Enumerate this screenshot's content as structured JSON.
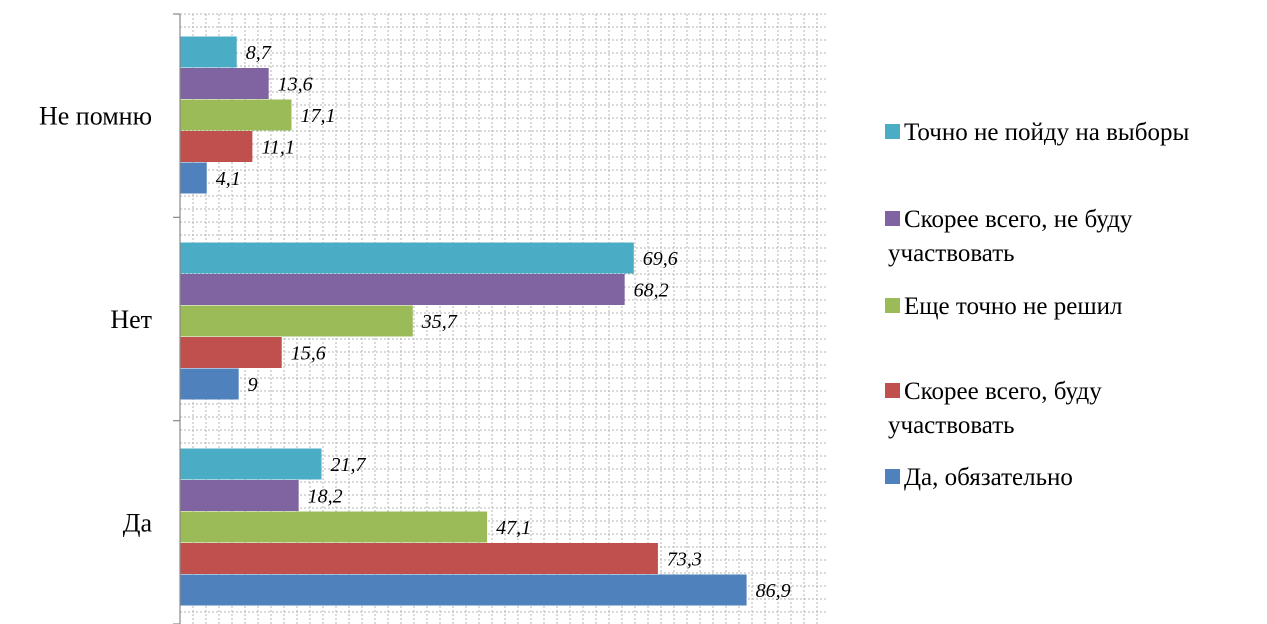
{
  "chart_data": {
    "type": "bar",
    "orientation": "horizontal",
    "categories": [
      "Не помню",
      "Нет",
      "Да"
    ],
    "series": [
      {
        "name": "Точно не пойду на выборы",
        "color": "#4bacc6",
        "values": [
          8.7,
          69.6,
          21.7
        ],
        "labels": [
          "8,7",
          "69,6",
          "21,7"
        ]
      },
      {
        "name": "Скорее всего, не буду участвовать",
        "color": "#8064a2",
        "values": [
          13.6,
          68.2,
          18.2
        ],
        "labels": [
          "13,6",
          "68,2",
          "18,2"
        ]
      },
      {
        "name": "Еще точно не решил",
        "color": "#9bbb59",
        "values": [
          17.1,
          35.7,
          47.1
        ],
        "labels": [
          "17,1",
          "35,7",
          "47,1"
        ]
      },
      {
        "name": "Скорее всего, буду участвовать",
        "color": "#c0504d",
        "values": [
          11.1,
          15.6,
          73.3
        ],
        "labels": [
          "11,1",
          "15,6",
          "73,3"
        ]
      },
      {
        "name": "Да, обязательно",
        "color": "#4f81bd",
        "values": [
          4.1,
          9,
          86.9
        ],
        "labels": [
          "4,1",
          "9",
          "86,9"
        ]
      }
    ],
    "title": "",
    "xlabel": "",
    "ylabel": "",
    "xlim": [
      0,
      100
    ],
    "grid": true,
    "legend_position": "right"
  }
}
